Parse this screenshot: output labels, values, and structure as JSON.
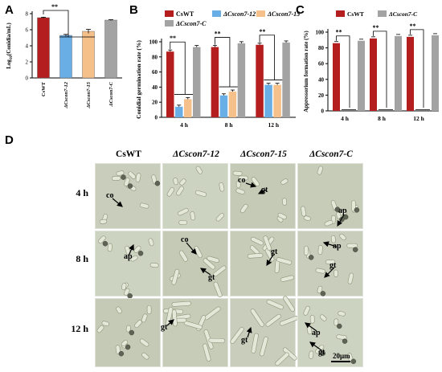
{
  "panels": {
    "A": "A",
    "B": "B",
    "C": "C",
    "D": "D"
  },
  "colors": {
    "wt": "#b41e1e",
    "m12": "#6aaee6",
    "m15": "#f5c08a",
    "comp": "#a3a3a3"
  },
  "panelA": {
    "ylabel": "Log10(Conidia/mL)",
    "ylabel_base": "Log",
    "ylabel_sub": "10",
    "ylabel_rest": "(Conidia/mL)",
    "yticks": [
      "0",
      "2",
      "4",
      "6",
      "8"
    ],
    "sig": "**",
    "chart_data": {
      "type": "bar",
      "categories": [
        "CsWT",
        "ΔCscon7-12",
        "ΔCscon7-15",
        "ΔCscon7-C"
      ],
      "values": [
        7.5,
        5.3,
        5.8,
        7.2
      ],
      "errors": [
        0.06,
        0.12,
        0.25,
        0.05
      ],
      "ylabel": "Log10(Conidia/mL)",
      "ylim": [
        0,
        8
      ]
    }
  },
  "panelB": {
    "ylabel": "Conidial germination rate (%)",
    "yticks": [
      "0",
      "20",
      "40",
      "60",
      "80",
      "100"
    ],
    "xticks": [
      "4 h",
      "8 h",
      "12 h"
    ],
    "sig": "**",
    "legend": [
      "CsWT",
      "ΔCscon7-12",
      "ΔCscon7-15",
      "ΔCscon7-C"
    ],
    "chart_data": {
      "type": "bar",
      "categories": [
        "4 h",
        "8 h",
        "12 h"
      ],
      "series": [
        {
          "name": "CsWT",
          "values": [
            87,
            93,
            96
          ]
        },
        {
          "name": "ΔCscon7-12",
          "values": [
            14,
            29,
            43
          ]
        },
        {
          "name": "ΔCscon7-15",
          "values": [
            24,
            34,
            43
          ]
        },
        {
          "name": "ΔCscon7-C",
          "values": [
            93,
            98,
            99
          ]
        }
      ],
      "ylabel": "Conidial germination rate (%)",
      "ylim": [
        0,
        100
      ]
    }
  },
  "panelC": {
    "ylabel": "Appressorium formation rate (%)",
    "yticks": [
      "0",
      "20",
      "40",
      "60",
      "80",
      "100"
    ],
    "xticks": [
      "4 h",
      "8 h",
      "12 h"
    ],
    "sig": "**",
    "legend": [
      "CsWT",
      "ΔCscon7-C"
    ],
    "chart_data": {
      "type": "bar",
      "categories": [
        "4 h",
        "8 h",
        "12 h"
      ],
      "series": [
        {
          "name": "CsWT",
          "values": [
            86,
            92,
            94
          ]
        },
        {
          "name": "ΔCscon7-C",
          "values": [
            89,
            95,
            96
          ]
        }
      ],
      "ylabel": "Appressorium formation rate (%)",
      "ylim": [
        0,
        100
      ]
    }
  },
  "panelD": {
    "columns": [
      "CsWT",
      "ΔCscon7-12",
      "ΔCscon7-15",
      "ΔCscon7-C"
    ],
    "rows": [
      "4 h",
      "8 h",
      "12 h"
    ],
    "labels": {
      "co": "co",
      "gt": "gt",
      "ap": "ap"
    },
    "scale": "20μm"
  }
}
